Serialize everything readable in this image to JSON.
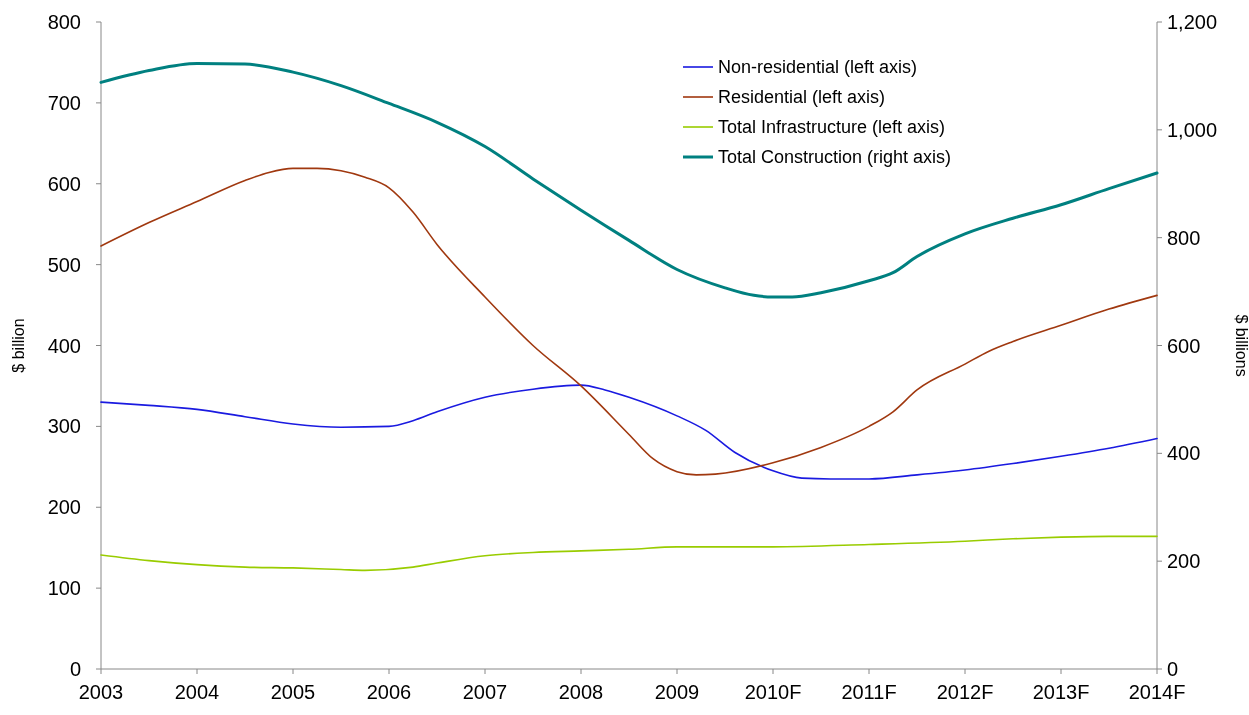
{
  "chart_data": {
    "type": "line",
    "ylabel": "$ billion",
    "y2label": "$ billions",
    "xlim": [
      2003,
      2014
    ],
    "xticks": [
      2003,
      2004,
      2005,
      2006,
      2007,
      2008,
      2009,
      {
        "value": 2010,
        "label": "2010F"
      },
      {
        "value": 2011,
        "label": "2011F"
      },
      {
        "value": 2012,
        "label": "2012F"
      },
      {
        "value": 2013,
        "label": "2013F"
      },
      {
        "value": 2014,
        "label": "2014F"
      }
    ],
    "ylim": [
      0,
      800
    ],
    "yticks": [
      0,
      100,
      200,
      300,
      400,
      500,
      600,
      700,
      800
    ],
    "y2lim": [
      0,
      1200
    ],
    "y2ticks": [
      0,
      200,
      400,
      600,
      800,
      {
        "value": 1000,
        "label": "1,000"
      },
      {
        "value": 1200,
        "label": "1,200"
      }
    ],
    "grid": false,
    "legend": "top right",
    "marker": "none",
    "line_style": "solid",
    "series": [
      {
        "name": "Non-residential (left axis)",
        "color": "#1a1ae0",
        "x": [
          2003,
          2003.5,
          2004,
          2004.5,
          2005,
          2005.5,
          2006,
          2006.25,
          2006.5,
          2007,
          2007.5,
          2008,
          2008.25,
          2008.5,
          2009,
          2009.3,
          2009.6,
          2010,
          2010.3,
          2010.6,
          2011,
          2011.5,
          2012,
          2012.5,
          2013,
          2013.5,
          2014
        ],
        "values": [
          330,
          326,
          321,
          312,
          303,
          299,
          300,
          307,
          318,
          336,
          346,
          351,
          345,
          336,
          313,
          295,
          268,
          245,
          236,
          235,
          235,
          240,
          246,
          254,
          263,
          273,
          285
        ]
      },
      {
        "name": "Residential (left axis)",
        "color": "#a0380f",
        "x": [
          2003,
          2003.5,
          2004,
          2004.5,
          2004.75,
          2005,
          2005.25,
          2005.5,
          2005.75,
          2006,
          2006.25,
          2006.5,
          2007,
          2007.5,
          2008,
          2008.5,
          2008.75,
          2009,
          2009.2,
          2009.4,
          2010,
          2010.5,
          2011,
          2011.25,
          2011.5,
          2012,
          2012.25,
          2012.5,
          2013,
          2013.5,
          2014
        ],
        "values": [
          523,
          552,
          578,
          604,
          614,
          619,
          619,
          616,
          608,
          595,
          565,
          525,
          460,
          400,
          350,
          290,
          260,
          244,
          240,
          241,
          255,
          274,
          300,
          318,
          345,
          377,
          393,
          405,
          425,
          445,
          462
        ]
      },
      {
        "name": "Total Infrastructure (left axis)",
        "color": "#99cc00",
        "x": [
          2003,
          2003.5,
          2004,
          2004.5,
          2005,
          2005.5,
          2005.75,
          2006.25,
          2006.5,
          2007,
          2007.5,
          2008,
          2008.5,
          2009,
          2010,
          2011,
          2012,
          2012.5,
          2013,
          2013.5,
          2014
        ],
        "values": [
          141,
          134,
          129,
          126,
          125,
          123,
          122,
          126,
          131,
          140,
          144,
          146,
          148,
          151,
          151,
          154,
          158,
          161,
          163,
          164,
          164
        ]
      },
      {
        "name": "Total Construction (right axis)",
        "color": "#008080",
        "axis": "y2",
        "x": [
          2003,
          2003.5,
          2004,
          2004.5,
          2005,
          2005.5,
          2006,
          2006.5,
          2007,
          2007.5,
          2008,
          2008.5,
          2009,
          2009.5,
          2009.8,
          2010,
          2010.2,
          2010.5,
          2011,
          2011.25,
          2011.5,
          2012,
          2012.5,
          2013,
          2013.5,
          2014
        ],
        "values": [
          1088,
          1110,
          1123,
          1122,
          1107,
          1082,
          1049,
          1014,
          969,
          909,
          851,
          795,
          741,
          707,
          693,
          690,
          690,
          698,
          720,
          735,
          765,
          807,
          836,
          861,
          891,
          920
        ]
      }
    ]
  }
}
